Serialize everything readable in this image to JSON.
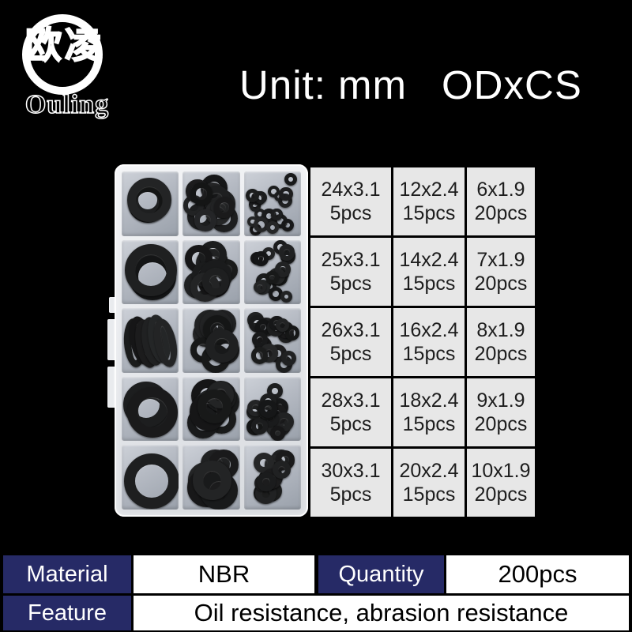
{
  "brand": {
    "logo_cn": "欧凌",
    "logo_en": "Ouling"
  },
  "header": {
    "unit_label": "Unit: mm",
    "format_label": "ODxCS"
  },
  "spec_table": {
    "rows": [
      [
        {
          "size": "24x3.1",
          "qty": "5pcs"
        },
        {
          "size": "12x2.4",
          "qty": "15pcs"
        },
        {
          "size": "6x1.9",
          "qty": "20pcs"
        }
      ],
      [
        {
          "size": "25x3.1",
          "qty": "5pcs"
        },
        {
          "size": "14x2.4",
          "qty": "15pcs"
        },
        {
          "size": "7x1.9",
          "qty": "20pcs"
        }
      ],
      [
        {
          "size": "26x3.1",
          "qty": "5pcs"
        },
        {
          "size": "16x2.4",
          "qty": "15pcs"
        },
        {
          "size": "8x1.9",
          "qty": "20pcs"
        }
      ],
      [
        {
          "size": "28x3.1",
          "qty": "5pcs"
        },
        {
          "size": "18x2.4",
          "qty": "15pcs"
        },
        {
          "size": "9x1.9",
          "qty": "20pcs"
        }
      ],
      [
        {
          "size": "30x3.1",
          "qty": "5pcs"
        },
        {
          "size": "20x2.4",
          "qty": "15pcs"
        },
        {
          "size": "10x1.9",
          "qty": "20pcs"
        }
      ]
    ]
  },
  "info_table": {
    "material_label": "Material",
    "material_value": "NBR",
    "quantity_label": "Quantity",
    "quantity_value": "200pcs",
    "feature_label": "Feature",
    "feature_value": "Oil resistance, abrasion resistance"
  },
  "colors": {
    "background": "#000000",
    "label_navy": "#262a66",
    "spec_cell_gray": "#e7e7e7",
    "oring_black": "#1b1b1b"
  },
  "box_photo": {
    "cells": [
      {
        "d": 56,
        "n": 3,
        "t": "flat"
      },
      {
        "d": 30,
        "n": 13,
        "t": "pile"
      },
      {
        "d": 16,
        "n": 20,
        "t": "scatter"
      },
      {
        "d": 66,
        "n": 2,
        "t": "flat"
      },
      {
        "d": 34,
        "n": 12,
        "t": "pile"
      },
      {
        "d": 18,
        "n": 18,
        "t": "scatter"
      },
      {
        "d": 62,
        "n": 6,
        "t": "stack"
      },
      {
        "d": 36,
        "n": 11,
        "t": "pile"
      },
      {
        "d": 20,
        "n": 18,
        "t": "scatter"
      },
      {
        "d": 64,
        "n": 3,
        "t": "flat"
      },
      {
        "d": 40,
        "n": 10,
        "t": "pile"
      },
      {
        "d": 22,
        "n": 16,
        "t": "scatter"
      },
      {
        "d": 70,
        "n": 1,
        "t": "flat"
      },
      {
        "d": 44,
        "n": 9,
        "t": "pile"
      },
      {
        "d": 24,
        "n": 14,
        "t": "scatter"
      }
    ]
  }
}
